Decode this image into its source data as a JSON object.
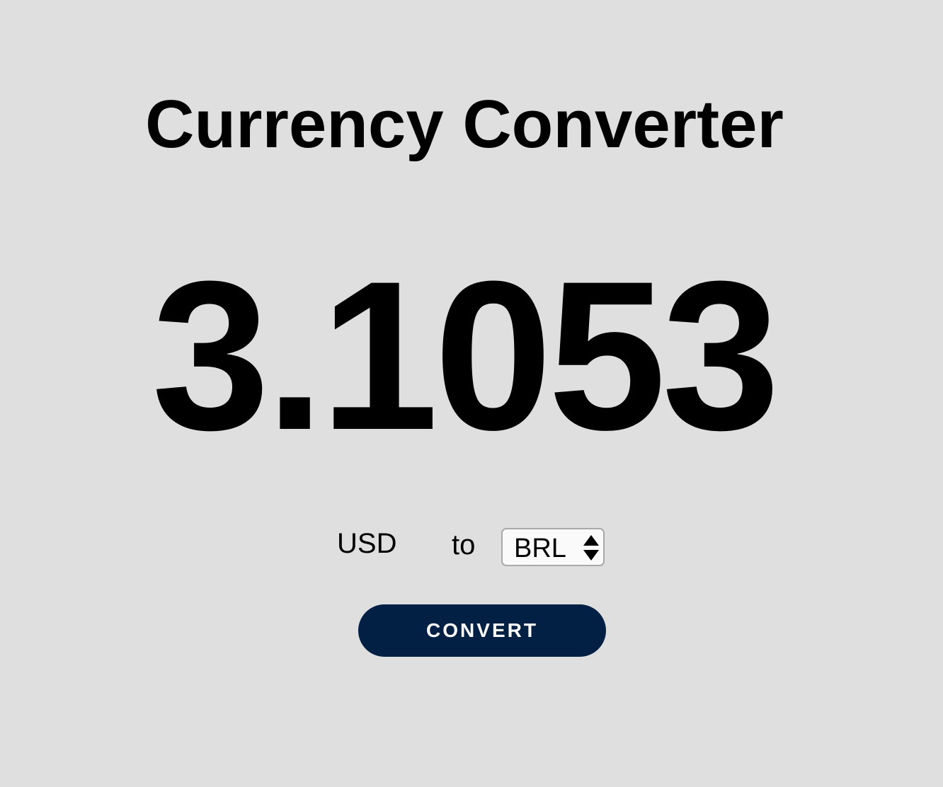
{
  "title": "Currency Converter",
  "result": "3.1053",
  "converter": {
    "from_currency": "USD",
    "to_word": "to",
    "to_currency": "BRL",
    "button_label": "CONVERT"
  },
  "colors": {
    "background": "#dfdfe0",
    "button": "#021f44",
    "button_text": "#ffffff"
  }
}
